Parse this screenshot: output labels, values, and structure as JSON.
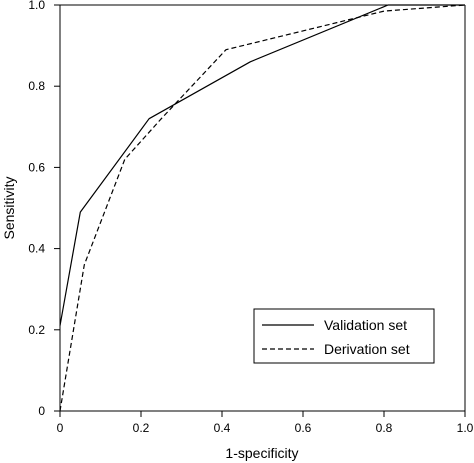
{
  "chart_data": {
    "type": "line",
    "xlabel": "1-specificity",
    "ylabel": "Sensitivity",
    "xlim": [
      0,
      1
    ],
    "ylim": [
      0,
      1
    ],
    "xticks": [
      0,
      0.2,
      0.4,
      0.6,
      0.8,
      1.0
    ],
    "xtick_labels": [
      "0",
      "0.2",
      "0.4",
      "0.6",
      "0.8",
      "1.0"
    ],
    "yticks": [
      0,
      0.2,
      0.4,
      0.6,
      0.8,
      1.0
    ],
    "ytick_labels": [
      "0",
      "0.2",
      "0.4",
      "0.6",
      "0.8",
      "1.0"
    ],
    "grid": false,
    "legend_position": "bottom-right",
    "series": [
      {
        "name": "Validation set",
        "style": "solid",
        "color": "#000000",
        "x": [
          0,
          0.05,
          0.22,
          0.47,
          0.81,
          1.0
        ],
        "y": [
          0.21,
          0.49,
          0.72,
          0.86,
          1.0,
          1.0
        ]
      },
      {
        "name": "Derivation set",
        "style": "dashed",
        "color": "#000000",
        "x": [
          0,
          0.06,
          0.16,
          0.25,
          0.41,
          0.8,
          1.0
        ],
        "y": [
          0,
          0.36,
          0.62,
          0.72,
          0.89,
          0.985,
          1.0
        ]
      }
    ]
  }
}
